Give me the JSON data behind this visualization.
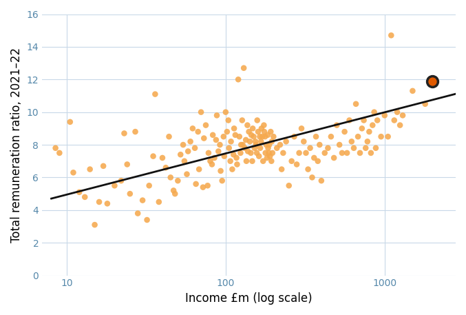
{
  "title": "",
  "xlabel": "Income £m (log scale)",
  "ylabel": "Total remuneration ratio, 2021–22",
  "ylim": [
    0,
    16
  ],
  "yticks": [
    0,
    2,
    4,
    6,
    8,
    10,
    12,
    14,
    16
  ],
  "xscale": "log",
  "xticks": [
    10,
    100,
    1000
  ],
  "xlim_log": [
    7,
    2800
  ],
  "scatter_color": "#F5A94E",
  "scatter_alpha": 0.88,
  "scatter_size": 38,
  "highlight_color": "#E05A00",
  "highlight_edge_color": "#222222",
  "highlight_x": 2000,
  "highlight_y": 11.9,
  "highlight_size": 130,
  "line_color": "#111111",
  "line_width": 2.0,
  "line_x_start": 8,
  "line_x_end": 2800,
  "line_slope": 2.52,
  "line_intercept": 2.43,
  "background_color": "#ffffff",
  "grid_color": "#c8d8e8",
  "axis_label_fontsize": 12,
  "tick_fontsize": 10,
  "tick_color": "#5588aa",
  "scatter_points": [
    [
      8.5,
      7.8
    ],
    [
      9.0,
      7.5
    ],
    [
      10.5,
      9.4
    ],
    [
      11.0,
      6.3
    ],
    [
      12.0,
      5.1
    ],
    [
      13.0,
      4.8
    ],
    [
      14.0,
      6.5
    ],
    [
      15.0,
      3.1
    ],
    [
      16.0,
      4.5
    ],
    [
      17.0,
      6.7
    ],
    [
      18.0,
      4.4
    ],
    [
      20.0,
      5.5
    ],
    [
      22.0,
      5.8
    ],
    [
      23.0,
      8.7
    ],
    [
      24.0,
      6.8
    ],
    [
      25.0,
      5.0
    ],
    [
      27.0,
      8.8
    ],
    [
      28.0,
      3.8
    ],
    [
      30.0,
      4.6
    ],
    [
      32.0,
      3.4
    ],
    [
      33.0,
      5.5
    ],
    [
      35.0,
      7.3
    ],
    [
      36.0,
      11.1
    ],
    [
      38.0,
      4.5
    ],
    [
      40.0,
      7.2
    ],
    [
      42.0,
      6.6
    ],
    [
      44.0,
      8.5
    ],
    [
      45.0,
      6.0
    ],
    [
      47.0,
      5.2
    ],
    [
      48.0,
      5.0
    ],
    [
      50.0,
      5.8
    ],
    [
      52.0,
      7.4
    ],
    [
      54.0,
      8.0
    ],
    [
      55.0,
      7.0
    ],
    [
      57.0,
      6.2
    ],
    [
      58.0,
      7.6
    ],
    [
      60.0,
      8.2
    ],
    [
      62.0,
      9.0
    ],
    [
      64.0,
      7.8
    ],
    [
      65.0,
      5.6
    ],
    [
      67.0,
      8.8
    ],
    [
      68.0,
      6.5
    ],
    [
      70.0,
      10.0
    ],
    [
      72.0,
      5.4
    ],
    [
      73.0,
      8.4
    ],
    [
      75.0,
      9.2
    ],
    [
      77.0,
      5.5
    ],
    [
      78.0,
      7.5
    ],
    [
      80.0,
      7.0
    ],
    [
      82.0,
      6.8
    ],
    [
      83.0,
      8.6
    ],
    [
      85.0,
      7.2
    ],
    [
      87.0,
      8.3
    ],
    [
      88.0,
      9.8
    ],
    [
      90.0,
      7.6
    ],
    [
      92.0,
      8.0
    ],
    [
      93.0,
      6.4
    ],
    [
      95.0,
      5.8
    ],
    [
      97.0,
      8.5
    ],
    [
      98.0,
      7.3
    ],
    [
      100.0,
      10.0
    ],
    [
      102.0,
      8.8
    ],
    [
      104.0,
      9.5
    ],
    [
      105.0,
      7.8
    ],
    [
      107.0,
      7.0
    ],
    [
      108.0,
      8.2
    ],
    [
      110.0,
      6.5
    ],
    [
      112.0,
      7.4
    ],
    [
      113.0,
      9.0
    ],
    [
      115.0,
      8.6
    ],
    [
      117.0,
      7.2
    ],
    [
      118.0,
      6.8
    ],
    [
      120.0,
      12.0
    ],
    [
      122.0,
      8.5
    ],
    [
      124.0,
      7.5
    ],
    [
      125.0,
      8.0
    ],
    [
      127.0,
      9.5
    ],
    [
      128.0,
      8.0
    ],
    [
      130.0,
      12.7
    ],
    [
      132.0,
      7.8
    ],
    [
      134.0,
      8.3
    ],
    [
      135.0,
      7.0
    ],
    [
      137.0,
      9.2
    ],
    [
      138.0,
      7.6
    ],
    [
      140.0,
      8.8
    ],
    [
      142.0,
      8.2
    ],
    [
      144.0,
      7.5
    ],
    [
      145.0,
      8.6
    ],
    [
      147.0,
      7.0
    ],
    [
      148.0,
      9.0
    ],
    [
      150.0,
      8.5
    ],
    [
      152.0,
      7.8
    ],
    [
      154.0,
      8.2
    ],
    [
      155.0,
      8.0
    ],
    [
      157.0,
      7.5
    ],
    [
      158.0,
      9.5
    ],
    [
      160.0,
      8.8
    ],
    [
      162.0,
      7.3
    ],
    [
      164.0,
      8.5
    ],
    [
      165.0,
      7.8
    ],
    [
      167.0,
      8.2
    ],
    [
      168.0,
      9.0
    ],
    [
      170.0,
      8.5
    ],
    [
      172.0,
      7.0
    ],
    [
      174.0,
      9.2
    ],
    [
      175.0,
      8.8
    ],
    [
      177.0,
      8.5
    ],
    [
      178.0,
      7.5
    ],
    [
      180.0,
      8.0
    ],
    [
      182.0,
      7.2
    ],
    [
      184.0,
      8.6
    ],
    [
      185.0,
      7.8
    ],
    [
      187.0,
      7.5
    ],
    [
      188.0,
      8.0
    ],
    [
      190.0,
      7.3
    ],
    [
      192.0,
      8.8
    ],
    [
      194.0,
      7.0
    ],
    [
      195.0,
      8.2
    ],
    [
      197.0,
      7.5
    ],
    [
      200.0,
      8.5
    ],
    [
      210.0,
      7.8
    ],
    [
      220.0,
      8.0
    ],
    [
      225.0,
      6.5
    ],
    [
      230.0,
      7.5
    ],
    [
      240.0,
      8.2
    ],
    [
      250.0,
      5.5
    ],
    [
      260.0,
      7.0
    ],
    [
      270.0,
      8.5
    ],
    [
      280.0,
      6.8
    ],
    [
      290.0,
      7.5
    ],
    [
      300.0,
      9.0
    ],
    [
      310.0,
      8.2
    ],
    [
      320.0,
      7.5
    ],
    [
      330.0,
      6.5
    ],
    [
      340.0,
      7.8
    ],
    [
      350.0,
      6.0
    ],
    [
      360.0,
      7.2
    ],
    [
      370.0,
      8.5
    ],
    [
      380.0,
      7.0
    ],
    [
      390.0,
      8.0
    ],
    [
      400.0,
      5.8
    ],
    [
      420.0,
      7.5
    ],
    [
      440.0,
      7.8
    ],
    [
      460.0,
      8.5
    ],
    [
      480.0,
      7.2
    ],
    [
      500.0,
      9.2
    ],
    [
      520.0,
      8.0
    ],
    [
      540.0,
      7.5
    ],
    [
      560.0,
      8.8
    ],
    [
      580.0,
      7.5
    ],
    [
      600.0,
      9.5
    ],
    [
      620.0,
      8.2
    ],
    [
      640.0,
      7.8
    ],
    [
      660.0,
      10.5
    ],
    [
      680.0,
      8.5
    ],
    [
      700.0,
      7.5
    ],
    [
      720.0,
      9.0
    ],
    [
      740.0,
      9.5
    ],
    [
      760.0,
      7.8
    ],
    [
      780.0,
      8.2
    ],
    [
      800.0,
      8.8
    ],
    [
      820.0,
      7.5
    ],
    [
      840.0,
      9.2
    ],
    [
      860.0,
      10.0
    ],
    [
      880.0,
      7.8
    ],
    [
      900.0,
      9.5
    ],
    [
      950.0,
      8.5
    ],
    [
      1000.0,
      9.8
    ],
    [
      1050.0,
      8.5
    ],
    [
      1100.0,
      14.7
    ],
    [
      1150.0,
      9.5
    ],
    [
      1200.0,
      10.0
    ],
    [
      1250.0,
      9.2
    ],
    [
      1300.0,
      9.8
    ],
    [
      1500.0,
      11.3
    ],
    [
      1800.0,
      10.5
    ]
  ]
}
